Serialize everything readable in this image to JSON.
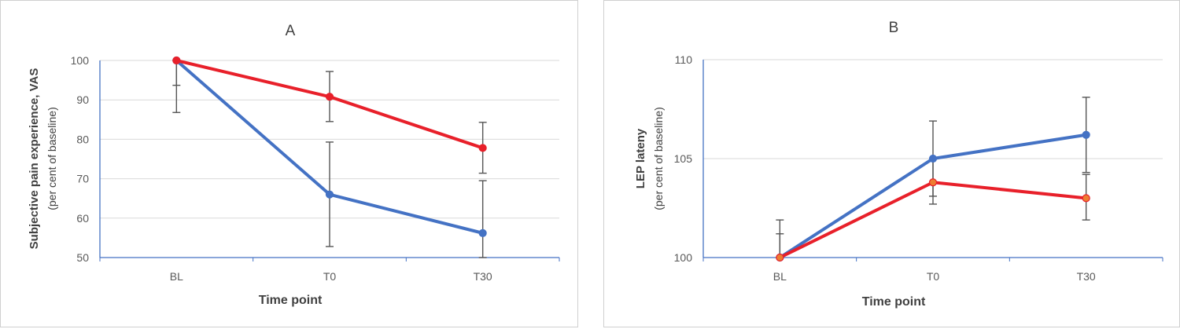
{
  "chart_data": [
    {
      "type": "line",
      "title": "A",
      "xlabel": "Time point",
      "ylabel": "Subjective pain experience, VAS",
      "ylabel_sub": "(per cent of baseline)",
      "categories": [
        "BL",
        "T0",
        "T30"
      ],
      "ylim": [
        50,
        100
      ],
      "yticks": [
        50,
        60,
        70,
        80,
        90,
        100
      ],
      "grid": true,
      "series": [
        {
          "color": "#4472c4",
          "marker_color": "#4472c4",
          "values": [
            100,
            66,
            56.2
          ],
          "error_low": [
            86.8,
            52.8,
            50
          ],
          "error_high": [
            100,
            79.3,
            69.5
          ]
        },
        {
          "color": "#e8202a",
          "marker_color": "#e8202a",
          "values": [
            100,
            90.8,
            77.8
          ],
          "error_low": [
            93.7,
            84.5,
            71.4
          ],
          "error_high": [
            100,
            97.2,
            84.3
          ]
        }
      ]
    },
    {
      "type": "line",
      "title": "B",
      "xlabel": "Time point",
      "ylabel": "LEP lateny",
      "ylabel_sub": "(per cent of baseline)",
      "categories": [
        "BL",
        "T0",
        "T30"
      ],
      "ylim": [
        100,
        110
      ],
      "yticks": [
        100,
        105,
        110
      ],
      "grid": true,
      "series": [
        {
          "color": "#4472c4",
          "marker_color": "#4472c4",
          "values": [
            100,
            105,
            106.2
          ],
          "error_low": [
            100,
            103.1,
            104.3
          ],
          "error_high": [
            101.2,
            106.9,
            108.1
          ]
        },
        {
          "color": "#e8202a",
          "marker_color": "#ed7d31",
          "values": [
            100,
            103.8,
            103
          ],
          "error_low": [
            100,
            102.7,
            101.9
          ],
          "error_high": [
            101.9,
            105,
            104.2
          ]
        }
      ]
    }
  ]
}
